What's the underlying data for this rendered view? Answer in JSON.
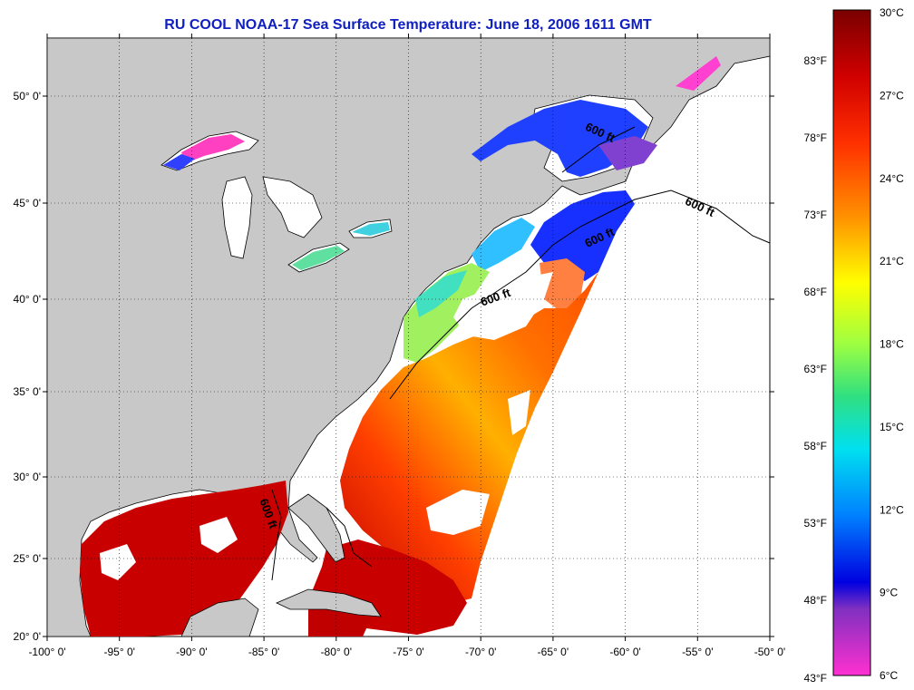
{
  "title": "RU COOL  NOAA-17  Sea Surface Temperature:  June 18, 2006 1611 GMT",
  "map": {
    "lon_labels": [
      "-100° 0'",
      "-95° 0'",
      "-90° 0'",
      "-85° 0'",
      "-80° 0'",
      "-75° 0'",
      "-70° 0'",
      "-65° 0'",
      "-60° 0'",
      "-55° 0'",
      "-50° 0'"
    ],
    "lat_labels": [
      "50° 0'",
      "45° 0'",
      "40° 0'",
      "35° 0'",
      "30° 0'",
      "25° 0'",
      "20° 0'"
    ],
    "isobath_labels": [
      "600 ft",
      "600 ft",
      "600 ft",
      "600 ft",
      "600 ft"
    ],
    "colors": {
      "land": "#c8c8c8",
      "ocean_no_data": "#ffffff",
      "title": "#1020c0"
    }
  },
  "colorbar": {
    "celsius_labels": [
      "30°C",
      "27°C",
      "24°C",
      "21°C",
      "18°C",
      "15°C",
      "12°C",
      "9°C",
      "6°C"
    ],
    "fahrenheit_labels": [
      "83°F",
      "78°F",
      "73°F",
      "68°F",
      "63°F",
      "58°F",
      "53°F",
      "48°F",
      "43°F"
    ],
    "range_c": [
      6,
      30
    ]
  }
}
